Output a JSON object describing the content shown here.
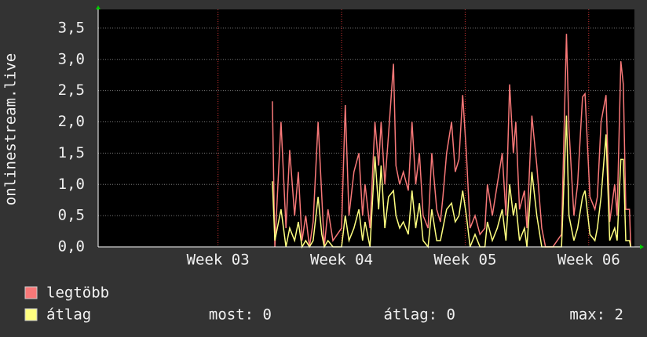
{
  "chart_data": {
    "type": "line",
    "y_label": "onlinestream.live",
    "x": [
      3.44,
      3.46,
      3.51,
      3.55,
      3.58,
      3.62,
      3.65,
      3.68,
      3.71,
      3.74,
      3.77,
      3.81,
      3.84,
      3.86,
      3.89,
      3.93,
      4.0,
      4.03,
      4.06,
      4.1,
      4.14,
      4.17,
      4.19,
      4.23,
      4.27,
      4.3,
      4.32,
      4.35,
      4.38,
      4.42,
      4.44,
      4.47,
      4.5,
      4.54,
      4.57,
      4.6,
      4.63,
      4.66,
      4.7,
      4.73,
      4.77,
      4.8,
      4.82,
      4.85,
      4.89,
      4.92,
      4.95,
      4.98,
      5.01,
      5.04,
      5.08,
      5.12,
      5.16,
      5.18,
      5.22,
      5.26,
      5.3,
      5.33,
      5.36,
      5.39,
      5.41,
      5.44,
      5.48,
      5.5,
      5.54,
      5.58,
      5.62,
      5.65,
      5.71,
      5.78,
      5.82,
      5.84,
      5.88,
      5.91,
      5.95,
      5.97,
      6.01,
      6.05,
      6.07,
      6.1,
      6.14,
      6.17,
      6.21,
      6.23,
      6.26,
      6.28,
      6.3,
      6.33,
      6.34
    ],
    "series": [
      {
        "name": "legtöbb",
        "color": "#f87878",
        "values": [
          2.33,
          0,
          2.0,
          0.3,
          1.55,
          0.5,
          1.2,
          0.1,
          0.5,
          0,
          0.4,
          2.0,
          0.8,
          0,
          0.6,
          0.1,
          0.3,
          2.27,
          0.5,
          1.2,
          1.5,
          0.5,
          1.0,
          0.3,
          2.0,
          1.3,
          2.0,
          1.0,
          1.8,
          2.93,
          1.3,
          1.0,
          1.2,
          0.9,
          2.0,
          1.0,
          1.5,
          0.5,
          0.3,
          1.5,
          0.6,
          0.4,
          0.8,
          1.5,
          2.0,
          1.2,
          1.4,
          2.43,
          1.5,
          0.3,
          0.5,
          0.2,
          0.3,
          1.0,
          0.5,
          1.0,
          1.5,
          0.5,
          2.6,
          1.5,
          2.0,
          0.6,
          0.9,
          0.3,
          2.1,
          1.3,
          0.3,
          0,
          0,
          0.2,
          3.41,
          1.9,
          0.5,
          1.0,
          2.4,
          2.45,
          0.8,
          0.6,
          0.8,
          2.0,
          2.43,
          0.4,
          1.0,
          0.5,
          2.97,
          2.6,
          0.6,
          0.6,
          0
        ]
      },
      {
        "name": "átlag",
        "color": "#ffff80",
        "values": [
          1.05,
          0.1,
          0.6,
          0,
          0.3,
          0.1,
          0.4,
          0,
          0.1,
          0,
          0.1,
          0.8,
          0.2,
          0,
          0.1,
          0,
          0,
          0.5,
          0.1,
          0.3,
          0.6,
          0.1,
          0.4,
          0,
          1.45,
          0.6,
          1.3,
          0.3,
          0.8,
          0.9,
          0.5,
          0.3,
          0.4,
          0.2,
          0.9,
          0.3,
          0.7,
          0.1,
          0,
          0.6,
          0.1,
          0.1,
          0.3,
          0.6,
          0.7,
          0.4,
          0.5,
          0.9,
          0.5,
          0,
          0.2,
          0,
          0,
          0.4,
          0.1,
          0.3,
          0.6,
          0.1,
          1.0,
          0.5,
          0.7,
          0.1,
          0.3,
          0,
          1.2,
          0.5,
          0,
          0,
          0,
          0,
          2.1,
          0.5,
          0.1,
          0.3,
          0.8,
          0.9,
          0.2,
          0.1,
          0.3,
          0.8,
          1.8,
          0.1,
          0.3,
          0.1,
          1.4,
          1.4,
          0.1,
          0.1,
          0
        ]
      }
    ],
    "stats": [
      "most: 0",
      "átlag: 0",
      "max: 2"
    ],
    "xlim": [
      2.03,
      6.37
    ],
    "xticks": [
      {
        "value": 3,
        "label": "Week 03"
      },
      {
        "value": 4,
        "label": "Week 04"
      },
      {
        "value": 5,
        "label": "Week 05"
      },
      {
        "value": 6,
        "label": "Week 06"
      }
    ],
    "ylim": [
      0,
      3.8
    ],
    "yticks": [
      {
        "value": 0,
        "label": "0,0"
      },
      {
        "value": 0.5,
        "label": "0,5"
      },
      {
        "value": 1,
        "label": "1,0"
      },
      {
        "value": 1.5,
        "label": "1,5"
      },
      {
        "value": 2,
        "label": "2,0"
      },
      {
        "value": 2.5,
        "label": "2,5"
      },
      {
        "value": 3,
        "label": "3,0"
      },
      {
        "value": 3.5,
        "label": "3,5"
      }
    ],
    "grid": true
  }
}
